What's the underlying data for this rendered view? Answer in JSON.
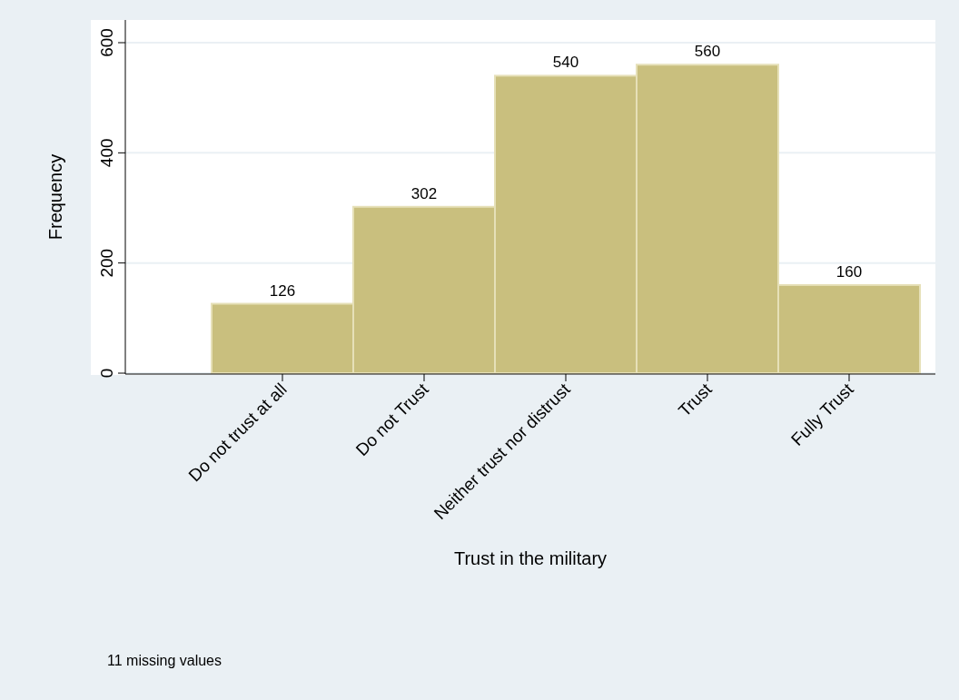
{
  "chart_data": {
    "type": "bar",
    "xlabel": "Trust in the military",
    "ylabel": "Frequency",
    "categories": [
      "Do not trust at all",
      "Do not Trust",
      "Neither trust nor distrust",
      "Trust",
      "Fully Trust"
    ],
    "values": [
      126,
      302,
      540,
      560,
      160
    ],
    "color": "#c9bf7e",
    "ylim": [
      0,
      600
    ],
    "yticks": [
      0,
      200,
      400,
      600
    ],
    "grid": "y",
    "data_labels": true,
    "annotations": [
      "11 missing values"
    ]
  }
}
